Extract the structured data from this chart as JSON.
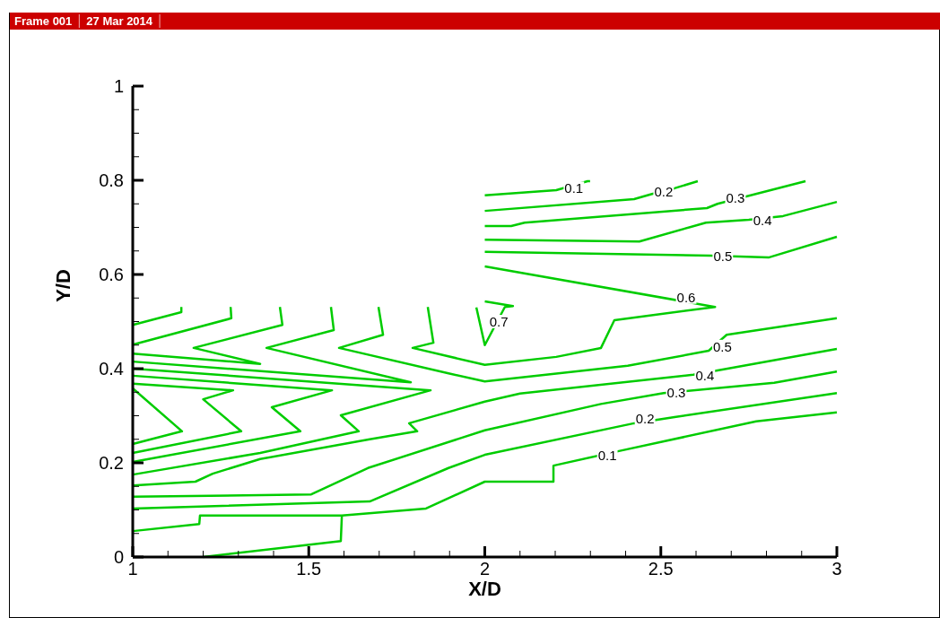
{
  "chart_data": {
    "type": "line",
    "title": "Frame 001",
    "subtitle": "27 Mar 2014",
    "xlabel": "X/D",
    "ylabel": "Y/D",
    "xlim": [
      1,
      3
    ],
    "ylim": [
      0,
      1
    ],
    "xticks": [
      1,
      {
        "value": 1.1,
        "label": null
      },
      {
        "value": 1.2,
        "label": null
      },
      {
        "value": 1.3,
        "label": null
      },
      {
        "value": 1.4,
        "label": null
      },
      1.5,
      {
        "value": 1.6,
        "label": null
      },
      {
        "value": 1.7,
        "label": null
      },
      {
        "value": 1.8,
        "label": null
      },
      {
        "value": 1.9,
        "label": null
      },
      2,
      {
        "value": 2.1,
        "label": null
      },
      {
        "value": 2.2,
        "label": null
      },
      {
        "value": 2.3,
        "label": null
      },
      {
        "value": 2.4,
        "label": null
      },
      2.5,
      {
        "value": 2.6,
        "label": null
      },
      {
        "value": 2.7,
        "label": null
      },
      {
        "value": 2.8,
        "label": null
      },
      {
        "value": 2.9,
        "label": null
      },
      3
    ],
    "yticks": [
      0,
      {
        "value": 0.05,
        "label": null
      },
      {
        "value": 0.1,
        "label": null
      },
      {
        "value": 0.15,
        "label": null
      },
      0.2,
      {
        "value": 0.25,
        "label": null
      },
      {
        "value": 0.3,
        "label": null
      },
      {
        "value": 0.35,
        "label": null
      },
      0.4,
      {
        "value": 0.45,
        "label": null
      },
      {
        "value": 0.5,
        "label": null
      },
      {
        "value": 0.55,
        "label": null
      },
      0.6,
      {
        "value": 0.65,
        "label": null
      },
      {
        "value": 0.7,
        "label": null
      },
      {
        "value": 0.75,
        "label": null
      },
      0.8,
      {
        "value": 0.85,
        "label": null
      },
      {
        "value": 0.9,
        "label": null
      },
      {
        "value": 0.95,
        "label": null
      },
      1
    ],
    "grid": false,
    "marker": "none",
    "line_style": "solid",
    "series": [
      {
        "color": "#00cc00",
        "x": [
          1,
          1.138,
          1.138
        ],
        "values": [
          0.493,
          0.52,
          0.531
        ]
      },
      {
        "color": "#00cc00",
        "x": [
          1,
          1.28,
          1.278
        ],
        "values": [
          0.451,
          0.507,
          0.531
        ]
      },
      {
        "color": "#00cc00",
        "x": [
          1,
          1.362,
          1.173,
          1.425,
          1.418
        ],
        "values": [
          0.432,
          0.41,
          0.444,
          0.493,
          0.531
        ]
      },
      {
        "color": "#00cc00",
        "x": [
          1,
          1.79,
          1.38,
          1.571,
          1.563
        ],
        "values": [
          0.415,
          0.371,
          0.444,
          0.482,
          0.531
        ]
      },
      {
        "color": "#00cc00",
        "x": [
          3,
          2.687,
          2.636,
          2.406,
          2.0,
          1.897,
          1.586,
          1.711,
          1.698
        ],
        "values": [
          0.507,
          0.472,
          0.438,
          0.406,
          0.373,
          0.39,
          0.444,
          0.472,
          0.531
        ]
      },
      {
        "color": "#00cc00",
        "x": [
          2.0,
          2.654,
          2.368,
          2.33,
          2.203,
          2.0,
          1.795,
          1.854,
          1.838
        ],
        "values": [
          0.617,
          0.531,
          0.503,
          0.444,
          0.425,
          0.408,
          0.444,
          0.455,
          0.531
        ]
      },
      {
        "color": "#00cc00",
        "x": [
          1.976,
          2.0,
          2.057,
          2.08,
          2.0
        ],
        "values": [
          0.53,
          0.45,
          0.531,
          0.533,
          0.543
        ]
      },
      {
        "color": "#00cc00",
        "x": [
          1,
          1.14,
          1
        ],
        "values": [
          0.358,
          0.267,
          0.24
        ]
      },
      {
        "color": "#00cc00",
        "x": [
          1,
          1.285,
          1.2,
          1.308,
          1
        ],
        "values": [
          0.368,
          0.354,
          0.335,
          0.267,
          0.221
        ]
      },
      {
        "color": "#00cc00",
        "x": [
          1,
          1.566,
          1.395,
          1.476,
          1
        ],
        "values": [
          0.385,
          0.354,
          0.318,
          0.267,
          0.202
        ]
      },
      {
        "color": "#00cc00",
        "x": [
          1,
          1.846,
          1.591,
          1.642,
          1.362,
          1
        ],
        "values": [
          0.4,
          0.354,
          0.301,
          0.267,
          0.221,
          0.175
        ]
      },
      {
        "color": "#00cc00",
        "x": [
          3,
          2.661,
          2.592,
          2.1,
          2.0,
          1.785,
          1.808,
          1.673,
          1.362,
          1.227,
          1.178,
          1
        ],
        "values": [
          0.442,
          0.396,
          0.387,
          0.347,
          0.33,
          0.284,
          0.267,
          0.25,
          0.208,
          0.177,
          0.16,
          0.152
        ]
      },
      {
        "color": "#00cc00",
        "x": [
          1,
          1.507,
          1.668,
          2.0,
          2.33,
          2.508,
          2.822,
          3
        ],
        "values": [
          0.128,
          0.133,
          0.189,
          0.269,
          0.325,
          0.348,
          0.37,
          0.394
        ]
      },
      {
        "color": "#00cc00",
        "x": [
          1,
          1.673,
          1.897,
          2.0,
          2.424,
          2.539,
          3
        ],
        "values": [
          0.103,
          0.118,
          0.189,
          0.217,
          0.284,
          0.297,
          0.348
        ]
      },
      {
        "color": "#00cc00",
        "x": [
          1,
          1.189,
          1.191,
          1.594,
          1.833,
          2.0,
          2.195,
          2.195,
          2.381,
          2.771,
          3
        ],
        "values": [
          0.055,
          0.07,
          0.088,
          0.088,
          0.103,
          0.16,
          0.16,
          0.194,
          0.225,
          0.288,
          0.307
        ]
      },
      {
        "color": "#00cc00",
        "x": [
          1.2,
          1.591,
          1.594
        ],
        "values": [
          0.0,
          0.034,
          0.088
        ]
      },
      {
        "color": "#00cc00",
        "x": [
          2.0,
          2.203,
          2.292,
          2.299
        ],
        "values": [
          0.768,
          0.779,
          0.798,
          0.798
        ]
      },
      {
        "color": "#00cc00",
        "x": [
          2.0,
          2.424,
          2.475,
          2.539,
          2.605
        ],
        "values": [
          0.735,
          0.76,
          0.771,
          0.783,
          0.798
        ]
      },
      {
        "color": "#00cc00",
        "x": [
          2.0,
          2.075,
          2.113,
          2.631,
          2.661,
          2.911
        ],
        "values": [
          0.703,
          0.703,
          0.71,
          0.741,
          0.75,
          0.798
        ]
      },
      {
        "color": "#00cc00",
        "x": [
          2.0,
          2.439,
          2.628,
          2.75,
          2.847,
          3
        ],
        "values": [
          0.674,
          0.67,
          0.71,
          0.716,
          0.724,
          0.754
        ]
      },
      {
        "color": "#00cc00",
        "x": [
          2.0,
          2.641,
          2.806,
          3
        ],
        "values": [
          0.648,
          0.64,
          0.636,
          0.68
        ]
      }
    ],
    "annotations": [
      {
        "text": "0.1",
        "x": 2.253,
        "y": 0.783
      },
      {
        "text": "0.2",
        "x": 2.508,
        "y": 0.777
      },
      {
        "text": "0.3",
        "x": 2.712,
        "y": 0.762
      },
      {
        "text": "0.4",
        "x": 2.789,
        "y": 0.716
      },
      {
        "text": "0.5",
        "x": 2.676,
        "y": 0.64
      },
      {
        "text": "0.6",
        "x": 2.572,
        "y": 0.552
      },
      {
        "text": "0.7",
        "x": 2.04,
        "y": 0.5
      },
      {
        "text": "0.5",
        "x": 2.675,
        "y": 0.447
      },
      {
        "text": "0.4",
        "x": 2.625,
        "y": 0.385
      },
      {
        "text": "0.3",
        "x": 2.544,
        "y": 0.35
      },
      {
        "text": "0.2",
        "x": 2.455,
        "y": 0.295
      },
      {
        "text": "0.1",
        "x": 2.348,
        "y": 0.217
      }
    ]
  }
}
